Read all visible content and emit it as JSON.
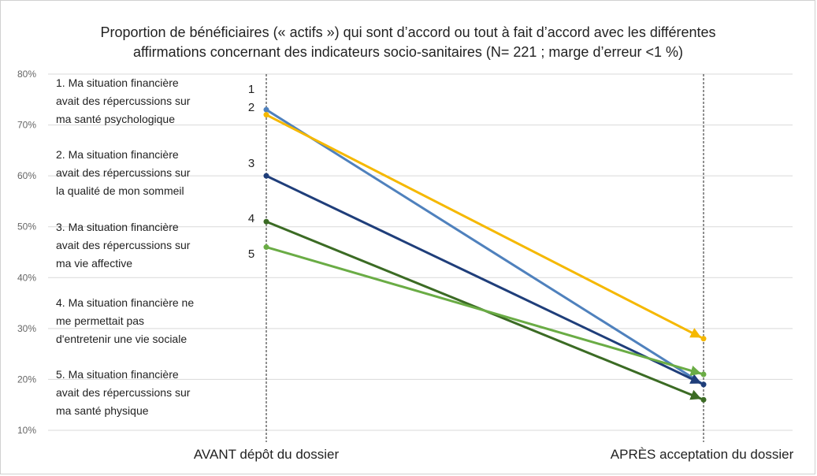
{
  "chart_data": {
    "type": "line",
    "title_lines": [
      "Proportion de bénéficiaires (« actifs ») qui sont d’accord ou tout à fait d’accord avec les différentes",
      "affirmations concernant des indicateurs socio-sanitaires (N= 221 ; marge d’erreur <1 %)"
    ],
    "categories": [
      "AVANT dépôt du dossier",
      "APRÈS acceptation du dossier"
    ],
    "ylim": [
      10,
      80
    ],
    "y_ticks": [
      "10%",
      "20%",
      "30%",
      "40%",
      "50%",
      "60%",
      "70%",
      "80%"
    ],
    "y_tick_values": [
      10,
      20,
      30,
      40,
      50,
      60,
      70,
      80
    ],
    "grid": true,
    "series": [
      {
        "name": "1",
        "values": [
          73,
          19
        ],
        "color": "#4f81bd",
        "arrow": false
      },
      {
        "name": "2",
        "values": [
          72,
          28
        ],
        "color": "#f5b800",
        "arrow": true
      },
      {
        "name": "3",
        "values": [
          60,
          19
        ],
        "color": "#1f3e7a",
        "arrow": true
      },
      {
        "name": "4",
        "values": [
          51,
          16
        ],
        "color": "#3b6b24",
        "arrow": true
      },
      {
        "name": "5",
        "values": [
          46,
          21
        ],
        "color": "#6aac45",
        "arrow": true
      }
    ],
    "statements": [
      [
        "1. Ma situation financière",
        "avait des répercussions sur",
        "ma santé psychologique"
      ],
      [
        "2. Ma situation financière",
        "avait des répercussions sur",
        "la qualité de mon sommeil"
      ],
      [
        "3. Ma situation financière",
        "avait des répercussions sur",
        "ma vie affective"
      ],
      [
        "4. Ma situation financière ne",
        "me permettait pas",
        "d'entretenir une vie sociale"
      ],
      [
        "5. Ma situation financière",
        "avait des répercussions sur",
        "ma santé physique"
      ]
    ]
  }
}
